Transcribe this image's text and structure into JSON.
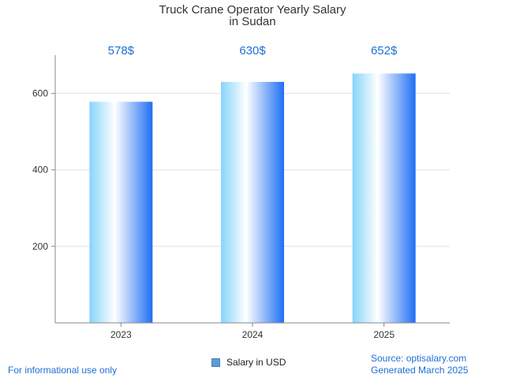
{
  "chart_data": {
    "type": "bar",
    "title_lines": [
      "Truck Crane Operator Yearly Salary",
      "in Sudan"
    ],
    "categories": [
      "2023",
      "2024",
      "2025"
    ],
    "series": [
      {
        "name": "Salary in USD",
        "values": [
          578,
          630,
          652
        ]
      }
    ],
    "data_labels": [
      "578$",
      "630$",
      "652$"
    ],
    "yticks": [
      200,
      400,
      600
    ],
    "ylim": [
      0,
      700
    ],
    "grid": true,
    "legend_position": "bottom-center",
    "colors": {
      "bar_light": "#87d4fb",
      "bar_mid": "#ffffff",
      "bar_dark": "#1f6ff5",
      "label": "#1f6fd6",
      "grid": "#e0e0e0",
      "axis": "#888888"
    }
  },
  "legend": {
    "label": "Salary in USD"
  },
  "footer": {
    "disclaimer": "For informational use only",
    "source": "Source: optisalary.com",
    "generated": "Generated March 2025"
  }
}
